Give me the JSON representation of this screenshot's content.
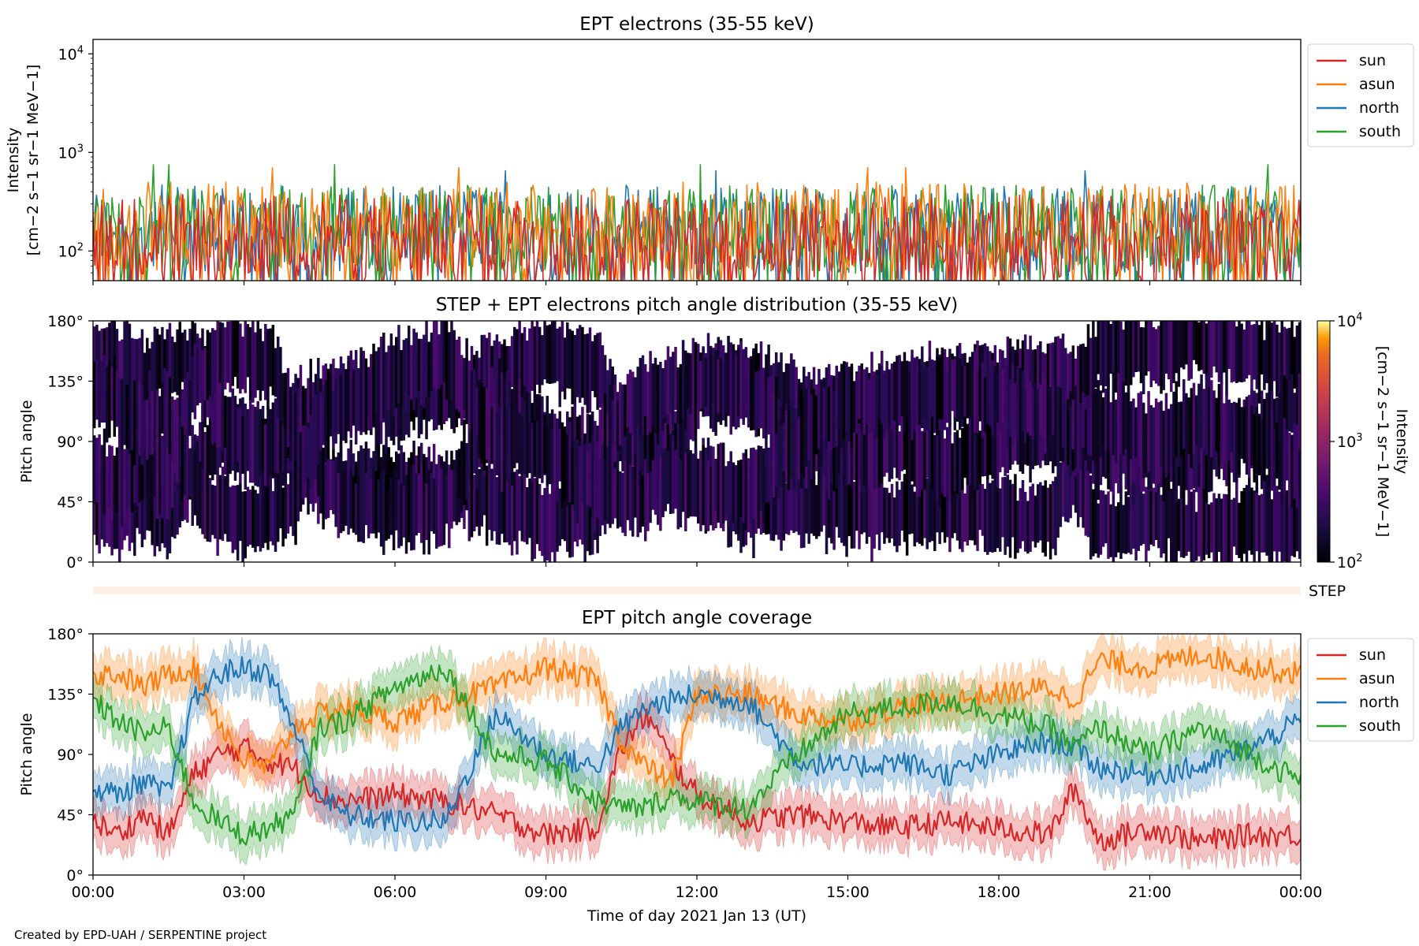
{
  "figure": {
    "credit": "Created by EPD-UAH / SERPENTINE project",
    "xlabel": "Time of day 2021 Jan 13 (UT)",
    "xticks": [
      "00:00",
      "03:00",
      "06:00",
      "09:00",
      "12:00",
      "15:00",
      "18:00",
      "21:00",
      "00:00"
    ]
  },
  "panels": {
    "p1": {
      "title": "EPT electrons (35-55 keV)",
      "ylabel_top": "Intensity",
      "ylabel_bottom": "[cm−2 s−1 sr−1 MeV−1]"
    },
    "p2": {
      "title": "STEP + EPT electrons pitch angle distribution (35-55 keV)",
      "ylabel": "Pitch angle",
      "cbar_label_top": "Intensity",
      "cbar_label_bottom": "[cm−2 s−1 sr−1 MeV−1]"
    },
    "step": {
      "label": "STEP"
    },
    "p3": {
      "title": "EPT pitch angle coverage",
      "ylabel": "Pitch angle"
    }
  },
  "chart_data": [
    {
      "type": "line",
      "title": "EPT electrons (35-55 keV)",
      "xlabel": "",
      "ylabel": "Intensity [cm−2 s−1 sr−1 MeV−1]",
      "yscale": "log",
      "xlim_hours": [
        0,
        24
      ],
      "ylim": [
        50,
        14000
      ],
      "yticks": [
        "10^2",
        "10^3",
        "10^4"
      ],
      "legend": "outside right",
      "series": [
        {
          "name": "sun",
          "color": "#d62728",
          "typical_range": [
            50,
            300
          ],
          "level": 120
        },
        {
          "name": "asun",
          "color": "#ff7f0e",
          "typical_range": [
            50,
            500
          ],
          "level": 160,
          "max": 700
        },
        {
          "name": "north",
          "color": "#1f77b4",
          "typical_range": [
            50,
            450
          ],
          "level": 150,
          "max": 650
        },
        {
          "name": "south",
          "color": "#2ca02c",
          "typical_range": [
            50,
            450
          ],
          "level": 150,
          "max": 750
        }
      ]
    },
    {
      "type": "heatmap",
      "title": "STEP + EPT electrons pitch angle distribution (35-55 keV)",
      "ylabel": "Pitch angle",
      "xlim_hours": [
        0,
        24
      ],
      "ylim": [
        0,
        180
      ],
      "yticks": [
        "0°",
        "45°",
        "90°",
        "135°",
        "180°"
      ],
      "colorbar": {
        "scale": "log",
        "range": [
          100,
          10000
        ],
        "ticks": [
          "10^2",
          "10^3",
          "10^4"
        ],
        "colormap": "inferno"
      },
      "typical_intensity": 200
    },
    {
      "type": "line",
      "title": "EPT pitch angle coverage",
      "xlabel": "Time of day 2021 Jan 13 (UT)",
      "ylabel": "Pitch angle",
      "xlim_hours": [
        0,
        24
      ],
      "ylim": [
        0,
        180
      ],
      "yticks": [
        "0°",
        "45°",
        "90°",
        "135°",
        "180°"
      ],
      "legend": "outside right",
      "band_halfwidth_deg": 15,
      "series": [
        {
          "name": "sun",
          "color": "#d62728",
          "x": [
            0,
            0.5,
            1,
            1.5,
            2,
            2.5,
            3,
            3.5,
            4,
            4.5,
            5,
            6,
            7,
            8,
            9,
            10,
            10.5,
            11,
            11.5,
            12,
            13,
            14,
            15,
            16,
            17,
            18,
            19,
            19.5,
            20,
            21,
            22,
            23,
            24
          ],
          "y": [
            40,
            30,
            45,
            30,
            75,
            90,
            95,
            85,
            80,
            60,
            55,
            60,
            55,
            45,
            30,
            35,
            95,
            120,
            85,
            60,
            40,
            45,
            40,
            35,
            40,
            35,
            30,
            65,
            25,
            35,
            25,
            30,
            30
          ]
        },
        {
          "name": "asun",
          "color": "#ff7f0e",
          "x": [
            0,
            0.5,
            1,
            1.5,
            2,
            2.5,
            3,
            3.5,
            4,
            4.5,
            5,
            6,
            7,
            8,
            9,
            10,
            10.5,
            11,
            11.5,
            12,
            13,
            14,
            15,
            16,
            17,
            18,
            19,
            19.5,
            20,
            21,
            22,
            23,
            24
          ],
          "y": [
            150,
            150,
            140,
            150,
            155,
            115,
            85,
            80,
            110,
            120,
            125,
            115,
            130,
            140,
            155,
            145,
            100,
            80,
            70,
            135,
            135,
            120,
            115,
            125,
            130,
            135,
            140,
            130,
            160,
            155,
            165,
            155,
            150
          ]
        },
        {
          "name": "north",
          "color": "#1f77b4",
          "x": [
            0,
            0.5,
            1,
            1.5,
            2,
            2.5,
            3,
            3.5,
            4,
            4.5,
            5,
            6,
            7,
            8,
            9,
            10,
            10.5,
            11,
            11.5,
            12,
            13,
            14,
            15,
            16,
            17,
            18,
            19,
            19.5,
            20,
            21,
            22,
            23,
            24
          ],
          "y": [
            65,
            60,
            70,
            60,
            130,
            150,
            155,
            150,
            110,
            60,
            45,
            40,
            40,
            120,
            90,
            80,
            110,
            125,
            130,
            135,
            130,
            85,
            80,
            85,
            75,
            90,
            100,
            95,
            80,
            75,
            80,
            95,
            115
          ]
        },
        {
          "name": "south",
          "color": "#2ca02c",
          "x": [
            0,
            0.5,
            1,
            1.5,
            2,
            2.5,
            3,
            3.5,
            4,
            4.5,
            5,
            6,
            7,
            8,
            9,
            10,
            10.5,
            11,
            11.5,
            12,
            13,
            14,
            15,
            16,
            17,
            18,
            19,
            19.5,
            20,
            21,
            22,
            23,
            24
          ],
          "y": [
            130,
            115,
            105,
            110,
            55,
            40,
            30,
            35,
            45,
            110,
            115,
            140,
            155,
            90,
            85,
            55,
            50,
            50,
            60,
            55,
            50,
            90,
            120,
            125,
            130,
            120,
            110,
            95,
            110,
            90,
            110,
            90,
            70
          ]
        }
      ]
    }
  ]
}
